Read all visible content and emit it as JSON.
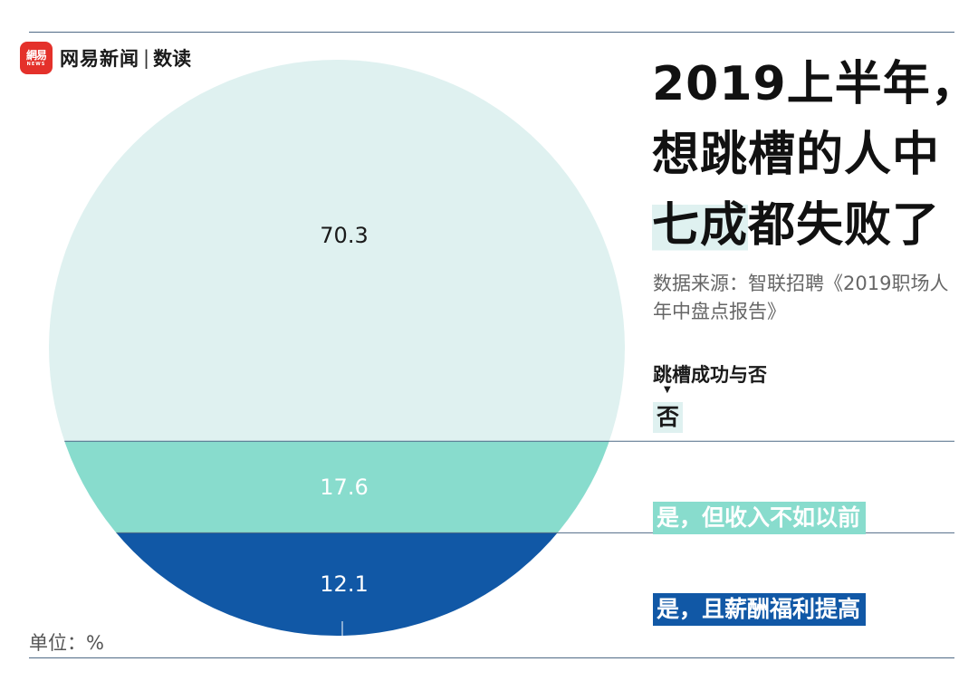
{
  "brand": {
    "logo_text": "網易",
    "logo_sub": "NEWS",
    "name": "网易新闻",
    "separator": "|",
    "section": "数读"
  },
  "title": {
    "line1": "2019上半年，",
    "line2": "想跳槽的人中",
    "line3_highlight": "七成",
    "line3_rest": "都失败了"
  },
  "source": "数据来源：智联招聘《2019职场人年中盘点报告》",
  "legend": {
    "title": "跳槽成功与否",
    "arrow": "▼"
  },
  "unit": "单位：%",
  "colors": {
    "no": "#dff1f0",
    "yes_less_income": "#88dccd",
    "yes_better": "#1158a6",
    "rule": "#4f6a86"
  },
  "chart_data": {
    "type": "pie",
    "title": "2019上半年，想跳槽的人中七成都失败了",
    "legend_title": "跳槽成功与否",
    "unit": "%",
    "categories": [
      "否",
      "是，但收入不如以前",
      "是，且薪酬福利提高"
    ],
    "values": [
      70.3,
      17.6,
      12.1
    ],
    "value_labels": [
      "70.3",
      "17.6",
      "12.1"
    ],
    "colors": [
      "#dff1f0",
      "#88dccd",
      "#1158a6"
    ],
    "label_colors": [
      "#1a1a1a",
      "#ffffff",
      "#ffffff"
    ]
  }
}
